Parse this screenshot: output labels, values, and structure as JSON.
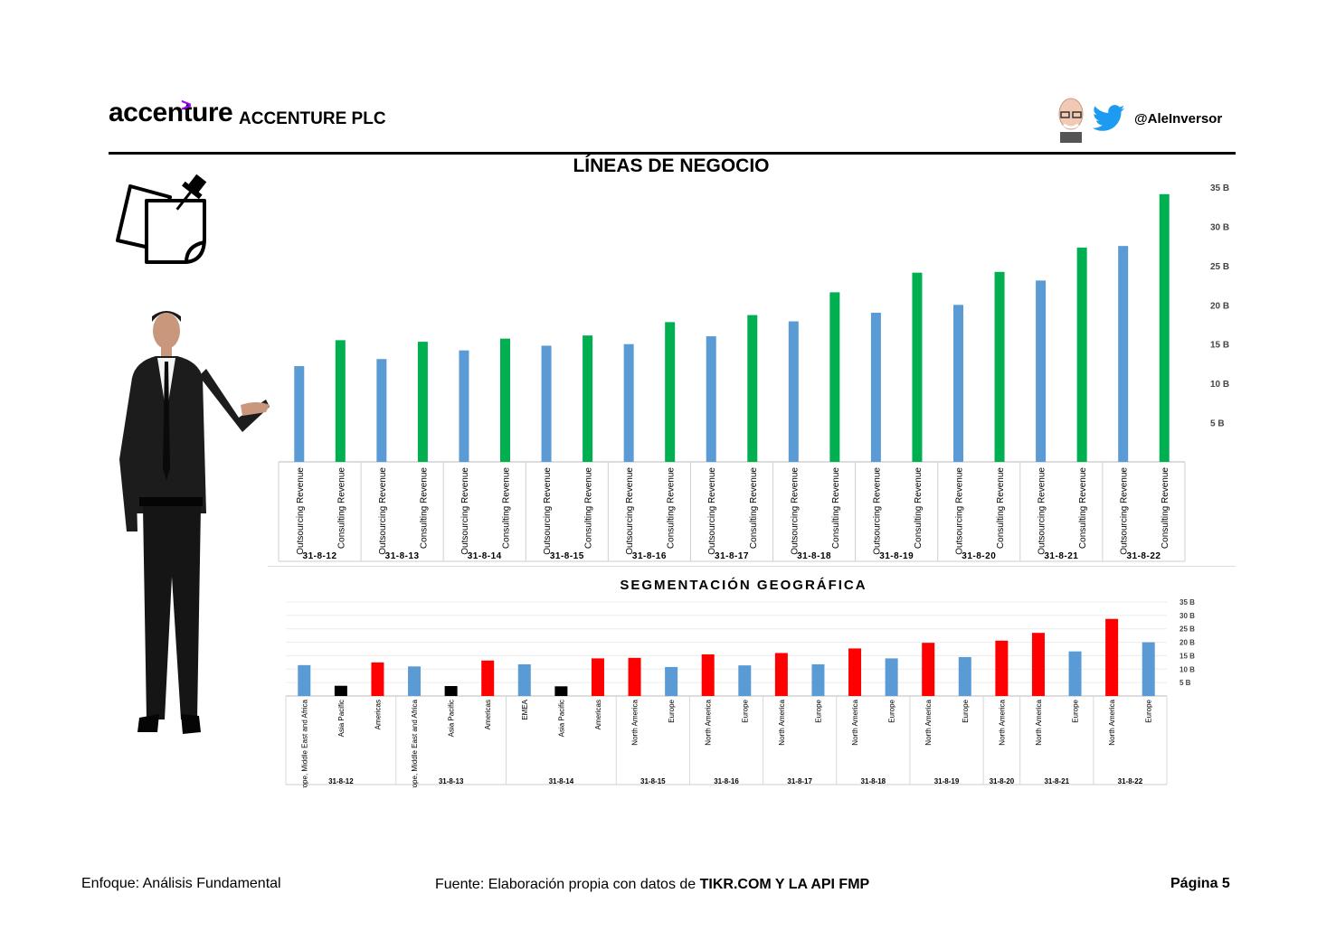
{
  "header": {
    "logo_text": "accenture",
    "logo_arrow": ">",
    "company": "ACCENTURE PLC",
    "twitter_handle": "@AleInversor"
  },
  "icons": [
    "note-pin-icon",
    "avatar-icon",
    "twitter-bird-icon",
    "presenter-figure"
  ],
  "colors": {
    "outsourcing": "#5b9bd5",
    "consulting": "#00b050",
    "geo_red": "#ff0000",
    "geo_black": "#000000",
    "brand": "#a100ff"
  },
  "footer": {
    "left": "Enfoque: Análisis Fundamental",
    "mid_prefix": "Fuente: Elaboración propia con datos de ",
    "mid_bold": "TIKR.COM Y LA API FMP",
    "right": "Página 5"
  },
  "chart_data": [
    {
      "type": "bar",
      "title": "LÍNEAS DE NEGOCIO",
      "y_ticks": [
        "5 B",
        "10 B",
        "15 B",
        "20 B",
        "25 B",
        "30 B",
        "35 B"
      ],
      "ylim": [
        0,
        35
      ],
      "y_unit": "B",
      "groups": [
        {
          "period": "31-8-12",
          "bars": [
            {
              "label": "Outsourcing Revenue",
              "value": 12.2
            },
            {
              "label": "Consulting Revenue",
              "value": 15.5
            }
          ]
        },
        {
          "period": "31-8-13",
          "bars": [
            {
              "label": "Outsourcing Revenue",
              "value": 13.1
            },
            {
              "label": "Consulting Revenue",
              "value": 15.3
            }
          ]
        },
        {
          "period": "31-8-14",
          "bars": [
            {
              "label": "Outsourcing Revenue",
              "value": 14.2
            },
            {
              "label": "Consulting Revenue",
              "value": 15.7
            }
          ]
        },
        {
          "period": "31-8-15",
          "bars": [
            {
              "label": "Outsourcing Revenue",
              "value": 14.8
            },
            {
              "label": "Consulting Revenue",
              "value": 16.1
            }
          ]
        },
        {
          "period": "31-8-16",
          "bars": [
            {
              "label": "Outsourcing Revenue",
              "value": 15.0
            },
            {
              "label": "Consulting Revenue",
              "value": 17.8
            }
          ]
        },
        {
          "period": "31-8-17",
          "bars": [
            {
              "label": "Outsourcing Revenue",
              "value": 16.0
            },
            {
              "label": "Consulting Revenue",
              "value": 18.7
            }
          ]
        },
        {
          "period": "31-8-18",
          "bars": [
            {
              "label": "Outsourcing Revenue",
              "value": 17.9
            },
            {
              "label": "Consulting Revenue",
              "value": 21.6
            }
          ]
        },
        {
          "period": "31-8-19",
          "bars": [
            {
              "label": "Outsourcing Revenue",
              "value": 19.0
            },
            {
              "label": "Consulting Revenue",
              "value": 24.1
            }
          ]
        },
        {
          "period": "31-8-20",
          "bars": [
            {
              "label": "Outsourcing Revenue",
              "value": 20.0
            },
            {
              "label": "Consulting Revenue",
              "value": 24.2
            }
          ]
        },
        {
          "period": "31-8-21",
          "bars": [
            {
              "label": "Outsourcing Revenue",
              "value": 23.1
            },
            {
              "label": "Consulting Revenue",
              "value": 27.3
            }
          ]
        },
        {
          "period": "31-8-22",
          "bars": [
            {
              "label": "Outsourcing Revenue",
              "value": 27.5
            },
            {
              "label": "Consulting Revenue",
              "value": 34.1
            }
          ]
        }
      ]
    },
    {
      "type": "bar",
      "title": "SEGMENTACIÓN GEOGRÁFICA",
      "y_ticks": [
        "5 B",
        "10 B",
        "15 B",
        "20 B",
        "25 B",
        "30 B",
        "35 B"
      ],
      "ylim": [
        0,
        35
      ],
      "y_unit": "B",
      "groups": [
        {
          "period": "31-8-12",
          "bars": [
            {
              "label": "Europe, Middle East and Africa",
              "value": 11.5,
              "color": "#5b9bd5"
            },
            {
              "label": "Asia Pacific",
              "value": 3.8,
              "color": "#000000"
            },
            {
              "label": "Americas",
              "value": 12.5,
              "color": "#ff0000"
            }
          ]
        },
        {
          "period": "31-8-13",
          "bars": [
            {
              "label": "Europe, Middle East and Africa",
              "value": 11.0,
              "color": "#5b9bd5"
            },
            {
              "label": "Asia Pacific",
              "value": 3.7,
              "color": "#000000"
            },
            {
              "label": "Americas",
              "value": 13.2,
              "color": "#ff0000"
            }
          ]
        },
        {
          "period": "31-8-14",
          "bars": [
            {
              "label": "EMEA",
              "value": 11.8,
              "color": "#5b9bd5"
            },
            {
              "label": "Asia Pacific",
              "value": 3.6,
              "color": "#000000"
            },
            {
              "label": "Americas",
              "value": 14.0,
              "color": "#ff0000"
            }
          ]
        },
        {
          "period": "31-8-15",
          "bars": [
            {
              "label": "North America",
              "value": 14.2,
              "color": "#ff0000"
            },
            {
              "label": "Europe",
              "value": 10.8,
              "color": "#5b9bd5"
            }
          ]
        },
        {
          "period": "31-8-16",
          "bars": [
            {
              "label": "North America",
              "value": 15.5,
              "color": "#ff0000"
            },
            {
              "label": "Europe",
              "value": 11.4,
              "color": "#5b9bd5"
            }
          ]
        },
        {
          "period": "31-8-17",
          "bars": [
            {
              "label": "North America",
              "value": 16.0,
              "color": "#ff0000"
            },
            {
              "label": "Europe",
              "value": 11.8,
              "color": "#5b9bd5"
            }
          ]
        },
        {
          "period": "31-8-18",
          "bars": [
            {
              "label": "North America",
              "value": 17.7,
              "color": "#ff0000"
            },
            {
              "label": "Europe",
              "value": 14.0,
              "color": "#5b9bd5"
            }
          ]
        },
        {
          "period": "31-8-19",
          "bars": [
            {
              "label": "North America",
              "value": 19.8,
              "color": "#ff0000"
            },
            {
              "label": "Europe",
              "value": 14.5,
              "color": "#5b9bd5"
            }
          ]
        },
        {
          "period": "31-8-20",
          "bars": [
            {
              "label": "North America",
              "value": 20.6,
              "color": "#ff0000"
            }
          ]
        },
        {
          "period": "31-8-21",
          "bars": [
            {
              "label": "North America",
              "value": 23.5,
              "color": "#ff0000"
            },
            {
              "label": "Europe",
              "value": 16.6,
              "color": "#5b9bd5"
            }
          ]
        },
        {
          "period": "31-8-22",
          "bars": [
            {
              "label": "North America",
              "value": 28.7,
              "color": "#ff0000"
            },
            {
              "label": "Europe",
              "value": 20.0,
              "color": "#5b9bd5"
            }
          ]
        }
      ]
    }
  ]
}
